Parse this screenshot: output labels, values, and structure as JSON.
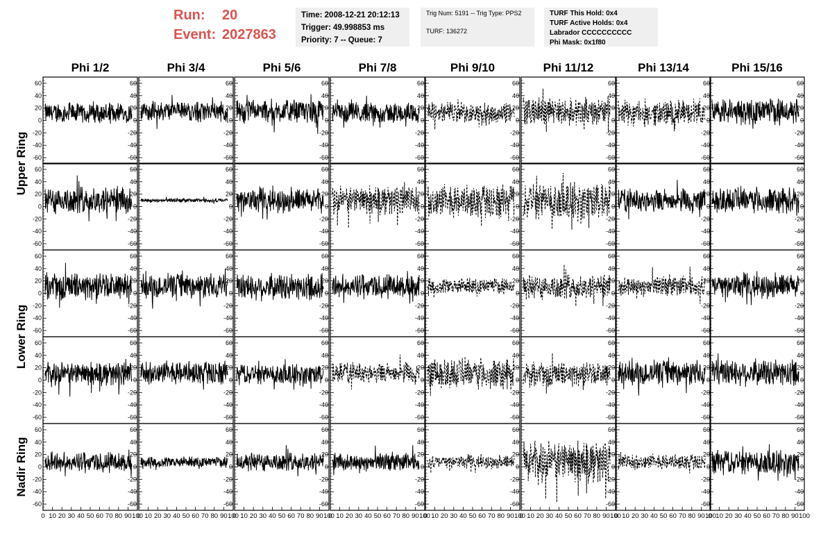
{
  "header": {
    "run_label": "Run:",
    "run_value": "20",
    "event_label": "Event:",
    "event_value": "2027863",
    "header_color": "#d9534f",
    "box1": {
      "time": "Time: 2008-12-21 20:12:13",
      "trigger": "Trigger: 49.998853 ms",
      "priority": "Priority: 7 -- Queue: 7"
    },
    "box2": {
      "trig": "Trig Num: 5191 -- Trig Type: PPS2",
      "turf": "TURF: 136272"
    },
    "box3": {
      "hold": "TURF This Hold: 0x4",
      "active": "TURF Active Holds: 0x4",
      "labrador": "Labrador CCCCCCCCCC",
      "mask": "Phi Mask: 0x1f80"
    },
    "box_color": "#efefef"
  },
  "chart_data": {
    "type": "line",
    "columns": [
      "Phi 1/2",
      "Phi 3/4",
      "Phi 5/6",
      "Phi 7/8",
      "Phi 9/10",
      "Phi 11/12",
      "Phi 13/14",
      "Phi 15/16"
    ],
    "rows": [
      "Upper Ring",
      "Upper Ring",
      "Lower Ring",
      "Lower Ring",
      "Nadir Ring"
    ],
    "row_labels": [
      {
        "label": "Upper Ring",
        "span_rows": [
          0,
          1
        ]
      },
      {
        "label": "Lower Ring",
        "span_rows": [
          2,
          3
        ]
      },
      {
        "label": "Nadir Ring",
        "span_rows": [
          4
        ]
      }
    ],
    "xlim": [
      0,
      100
    ],
    "ylim": [
      -70,
      70
    ],
    "y_ticks": [
      -60,
      -40,
      -20,
      0,
      20,
      40,
      60
    ],
    "x_ticks_labels": [
      "0",
      "10",
      "20",
      "30",
      "40",
      "50",
      "60",
      "70",
      "80",
      "90",
      "100"
    ],
    "line_color": "#000000",
    "amplitude": [
      [
        15,
        15,
        18,
        15,
        16,
        22,
        20,
        20
      ],
      [
        22,
        3,
        18,
        22,
        26,
        28,
        18,
        20
      ],
      [
        20,
        18,
        20,
        18,
        12,
        20,
        16,
        18
      ],
      [
        18,
        18,
        15,
        16,
        24,
        18,
        18,
        20
      ],
      [
        15,
        8,
        15,
        14,
        10,
        32,
        12,
        18
      ]
    ],
    "offset": [
      [
        12,
        15,
        15,
        12,
        12,
        15,
        12,
        15
      ],
      [
        10,
        10,
        10,
        10,
        8,
        10,
        10,
        10
      ],
      [
        12,
        12,
        10,
        12,
        12,
        10,
        12,
        12
      ],
      [
        10,
        12,
        10,
        12,
        10,
        10,
        12,
        12
      ],
      [
        8,
        8,
        8,
        8,
        8,
        8,
        8,
        8
      ]
    ],
    "dashed": [
      [
        false,
        false,
        false,
        false,
        true,
        true,
        true,
        false
      ],
      [
        false,
        false,
        false,
        true,
        true,
        true,
        false,
        false
      ],
      [
        false,
        false,
        false,
        false,
        true,
        true,
        true,
        false
      ],
      [
        false,
        false,
        false,
        true,
        true,
        true,
        false,
        false
      ],
      [
        false,
        false,
        false,
        false,
        true,
        true,
        true,
        false
      ]
    ]
  }
}
